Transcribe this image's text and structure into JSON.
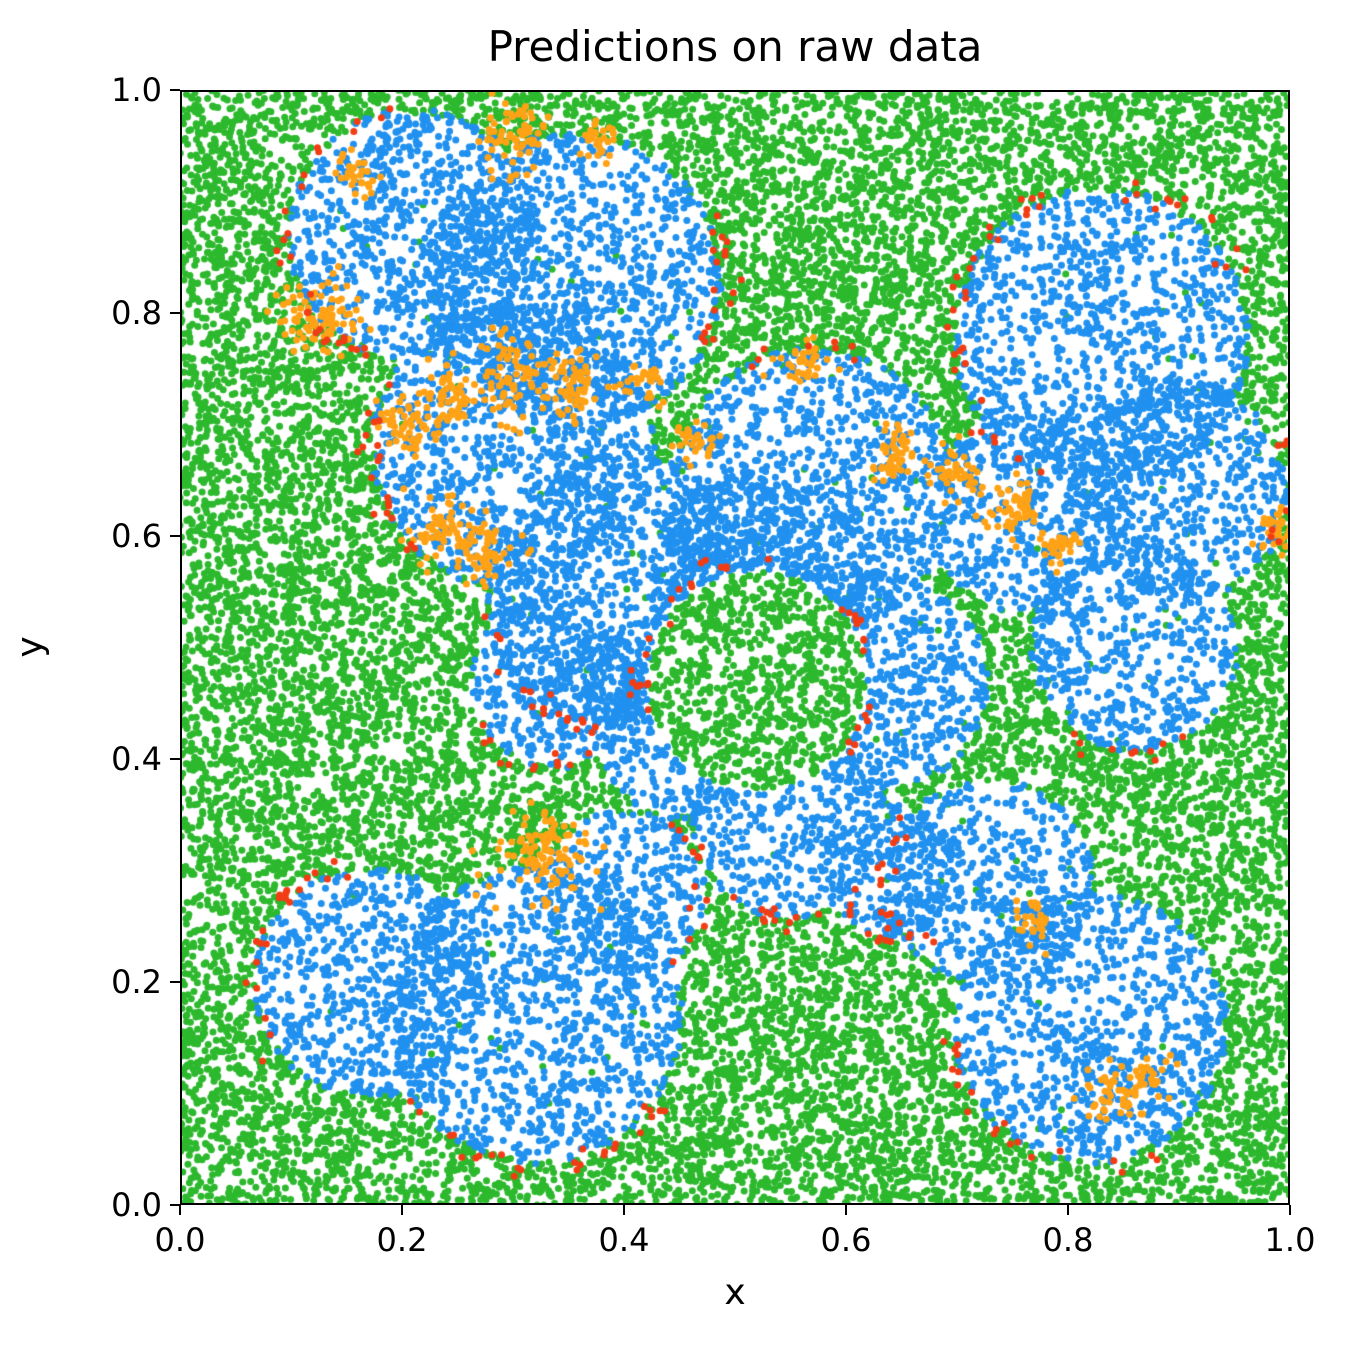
{
  "figure": {
    "title": "Predictions on raw data",
    "xlabel": "x",
    "ylabel": "y"
  },
  "chart_data": {
    "type": "scatter",
    "title": "Predictions on raw data",
    "xlabel": "x",
    "ylabel": "y",
    "xlim": [
      0.0,
      1.0
    ],
    "ylim": [
      0.0,
      1.0
    ],
    "grid": false,
    "legend": null,
    "xticks": {
      "values": [
        0.0,
        0.2,
        0.4,
        0.6,
        0.8,
        1.0
      ],
      "labels": [
        "0.0",
        "0.2",
        "0.4",
        "0.6",
        "0.8",
        "1.0"
      ]
    },
    "yticks": {
      "values": [
        0.0,
        0.2,
        0.4,
        0.6,
        0.8,
        1.0
      ],
      "labels": [
        "0.0",
        "0.2",
        "0.4",
        "0.6",
        "0.8",
        "1.0"
      ]
    },
    "marker_radius_px": 3.5,
    "seed": 42,
    "classes": [
      {
        "name": "class-0-background",
        "color": "#2db92d",
        "description": "green background region filling area outside blue blobs",
        "count": 15000
      },
      {
        "name": "class-1-blobs",
        "color": "#2191f0",
        "description": "blue points filling blob clusters",
        "count": 12000
      },
      {
        "name": "class-2-patches",
        "color": "#ffa216",
        "description": "orange points in small patches at blob boundaries"
      },
      {
        "name": "class-3-edges",
        "color": "#f23d14",
        "description": "red points outlining edges of blue blobs"
      }
    ],
    "blue_blobs": [
      {
        "cx": 0.21,
        "cy": 0.87,
        "r": 0.115
      },
      {
        "cx": 0.355,
        "cy": 0.83,
        "r": 0.135
      },
      {
        "cx": 0.3,
        "cy": 0.68,
        "r": 0.13
      },
      {
        "cx": 0.4,
        "cy": 0.55,
        "r": 0.125
      },
      {
        "cx": 0.34,
        "cy": 0.47,
        "r": 0.08
      },
      {
        "cx": 0.57,
        "cy": 0.64,
        "r": 0.13
      },
      {
        "cx": 0.52,
        "cy": 0.56,
        "r": 0.1
      },
      {
        "cx": 0.63,
        "cy": 0.47,
        "r": 0.1
      },
      {
        "cx": 0.55,
        "cy": 0.345,
        "r": 0.09
      },
      {
        "cx": 0.45,
        "cy": 0.42,
        "r": 0.075
      },
      {
        "cx": 0.83,
        "cy": 0.78,
        "r": 0.135
      },
      {
        "cx": 0.9,
        "cy": 0.64,
        "r": 0.1
      },
      {
        "cx": 0.76,
        "cy": 0.62,
        "r": 0.09
      },
      {
        "cx": 0.86,
        "cy": 0.5,
        "r": 0.095
      },
      {
        "cx": 0.32,
        "cy": 0.17,
        "r": 0.135
      },
      {
        "cx": 0.17,
        "cy": 0.2,
        "r": 0.105
      },
      {
        "cx": 0.4,
        "cy": 0.28,
        "r": 0.075
      },
      {
        "cx": 0.82,
        "cy": 0.16,
        "r": 0.125
      },
      {
        "cx": 0.73,
        "cy": 0.29,
        "r": 0.095
      },
      {
        "cx": 0.64,
        "cy": 0.3,
        "r": 0.06
      }
    ],
    "green_hole": {
      "cx": 0.52,
      "cy": 0.47,
      "r": 0.105
    },
    "orange_patches": [
      {
        "x": 0.125,
        "y": 0.795,
        "r": 0.022,
        "n": 90
      },
      {
        "x": 0.24,
        "y": 0.725,
        "r": 0.018,
        "n": 60
      },
      {
        "x": 0.3,
        "y": 0.74,
        "r": 0.022,
        "n": 80
      },
      {
        "x": 0.355,
        "y": 0.735,
        "r": 0.018,
        "n": 60
      },
      {
        "x": 0.42,
        "y": 0.74,
        "r": 0.012,
        "n": 30
      },
      {
        "x": 0.205,
        "y": 0.7,
        "r": 0.016,
        "n": 50
      },
      {
        "x": 0.235,
        "y": 0.605,
        "r": 0.018,
        "n": 60
      },
      {
        "x": 0.275,
        "y": 0.585,
        "r": 0.018,
        "n": 60
      },
      {
        "x": 0.3,
        "y": 0.955,
        "r": 0.02,
        "n": 70
      },
      {
        "x": 0.155,
        "y": 0.925,
        "r": 0.012,
        "n": 30
      },
      {
        "x": 0.38,
        "y": 0.955,
        "r": 0.012,
        "n": 30
      },
      {
        "x": 0.465,
        "y": 0.685,
        "r": 0.012,
        "n": 30
      },
      {
        "x": 0.56,
        "y": 0.755,
        "r": 0.012,
        "n": 35
      },
      {
        "x": 0.645,
        "y": 0.675,
        "r": 0.016,
        "n": 50
      },
      {
        "x": 0.7,
        "y": 0.655,
        "r": 0.014,
        "n": 45
      },
      {
        "x": 0.755,
        "y": 0.625,
        "r": 0.016,
        "n": 50
      },
      {
        "x": 0.79,
        "y": 0.59,
        "r": 0.012,
        "n": 35
      },
      {
        "x": 0.99,
        "y": 0.605,
        "r": 0.015,
        "n": 40
      },
      {
        "x": 0.33,
        "y": 0.315,
        "r": 0.026,
        "n": 110
      },
      {
        "x": 0.77,
        "y": 0.255,
        "r": 0.012,
        "n": 30
      },
      {
        "x": 0.84,
        "y": 0.1,
        "r": 0.016,
        "n": 45
      },
      {
        "x": 0.875,
        "y": 0.115,
        "r": 0.01,
        "n": 25
      }
    ],
    "red_arcs": [
      {
        "cx": 0.21,
        "cy": 0.87,
        "r": 0.115,
        "a0": 100,
        "a1": 250,
        "n": 28
      },
      {
        "cx": 0.355,
        "cy": 0.83,
        "r": 0.135,
        "a0": -35,
        "a1": 25,
        "n": 18
      },
      {
        "cx": 0.3,
        "cy": 0.68,
        "r": 0.13,
        "a0": 150,
        "a1": 230,
        "n": 20
      },
      {
        "cx": 0.4,
        "cy": 0.55,
        "r": 0.125,
        "a0": 190,
        "a1": 260,
        "n": 18
      },
      {
        "cx": 0.34,
        "cy": 0.47,
        "r": 0.08,
        "a0": 200,
        "a1": 300,
        "n": 12
      },
      {
        "cx": 0.52,
        "cy": 0.47,
        "r": 0.105,
        "a0": 80,
        "a1": 200,
        "n": 22
      },
      {
        "cx": 0.52,
        "cy": 0.47,
        "r": 0.105,
        "a0": -40,
        "a1": 40,
        "n": 16
      },
      {
        "cx": 0.55,
        "cy": 0.345,
        "r": 0.09,
        "a0": 200,
        "a1": 320,
        "n": 16
      },
      {
        "cx": 0.57,
        "cy": 0.64,
        "r": 0.13,
        "a0": 60,
        "a1": 120,
        "n": 8
      },
      {
        "cx": 0.83,
        "cy": 0.78,
        "r": 0.135,
        "a0": 110,
        "a1": 250,
        "n": 30
      },
      {
        "cx": 0.83,
        "cy": 0.78,
        "r": 0.135,
        "a0": 20,
        "a1": 80,
        "n": 14
      },
      {
        "cx": 0.9,
        "cy": 0.64,
        "r": 0.1,
        "a0": -30,
        "a1": 30,
        "n": 10
      },
      {
        "cx": 0.86,
        "cy": 0.5,
        "r": 0.095,
        "a0": 230,
        "a1": 300,
        "n": 10
      },
      {
        "cx": 0.32,
        "cy": 0.17,
        "r": 0.135,
        "a0": 210,
        "a1": 330,
        "n": 26
      },
      {
        "cx": 0.17,
        "cy": 0.2,
        "r": 0.105,
        "a0": 100,
        "a1": 220,
        "n": 22
      },
      {
        "cx": 0.4,
        "cy": 0.28,
        "r": 0.075,
        "a0": -60,
        "a1": 60,
        "n": 12
      },
      {
        "cx": 0.82,
        "cy": 0.16,
        "r": 0.125,
        "a0": 180,
        "a1": 300,
        "n": 20
      },
      {
        "cx": 0.73,
        "cy": 0.29,
        "r": 0.095,
        "a0": 140,
        "a1": 230,
        "n": 14
      },
      {
        "cx": 0.64,
        "cy": 0.3,
        "r": 0.06,
        "a0": 200,
        "a1": 300,
        "n": 10
      }
    ]
  }
}
